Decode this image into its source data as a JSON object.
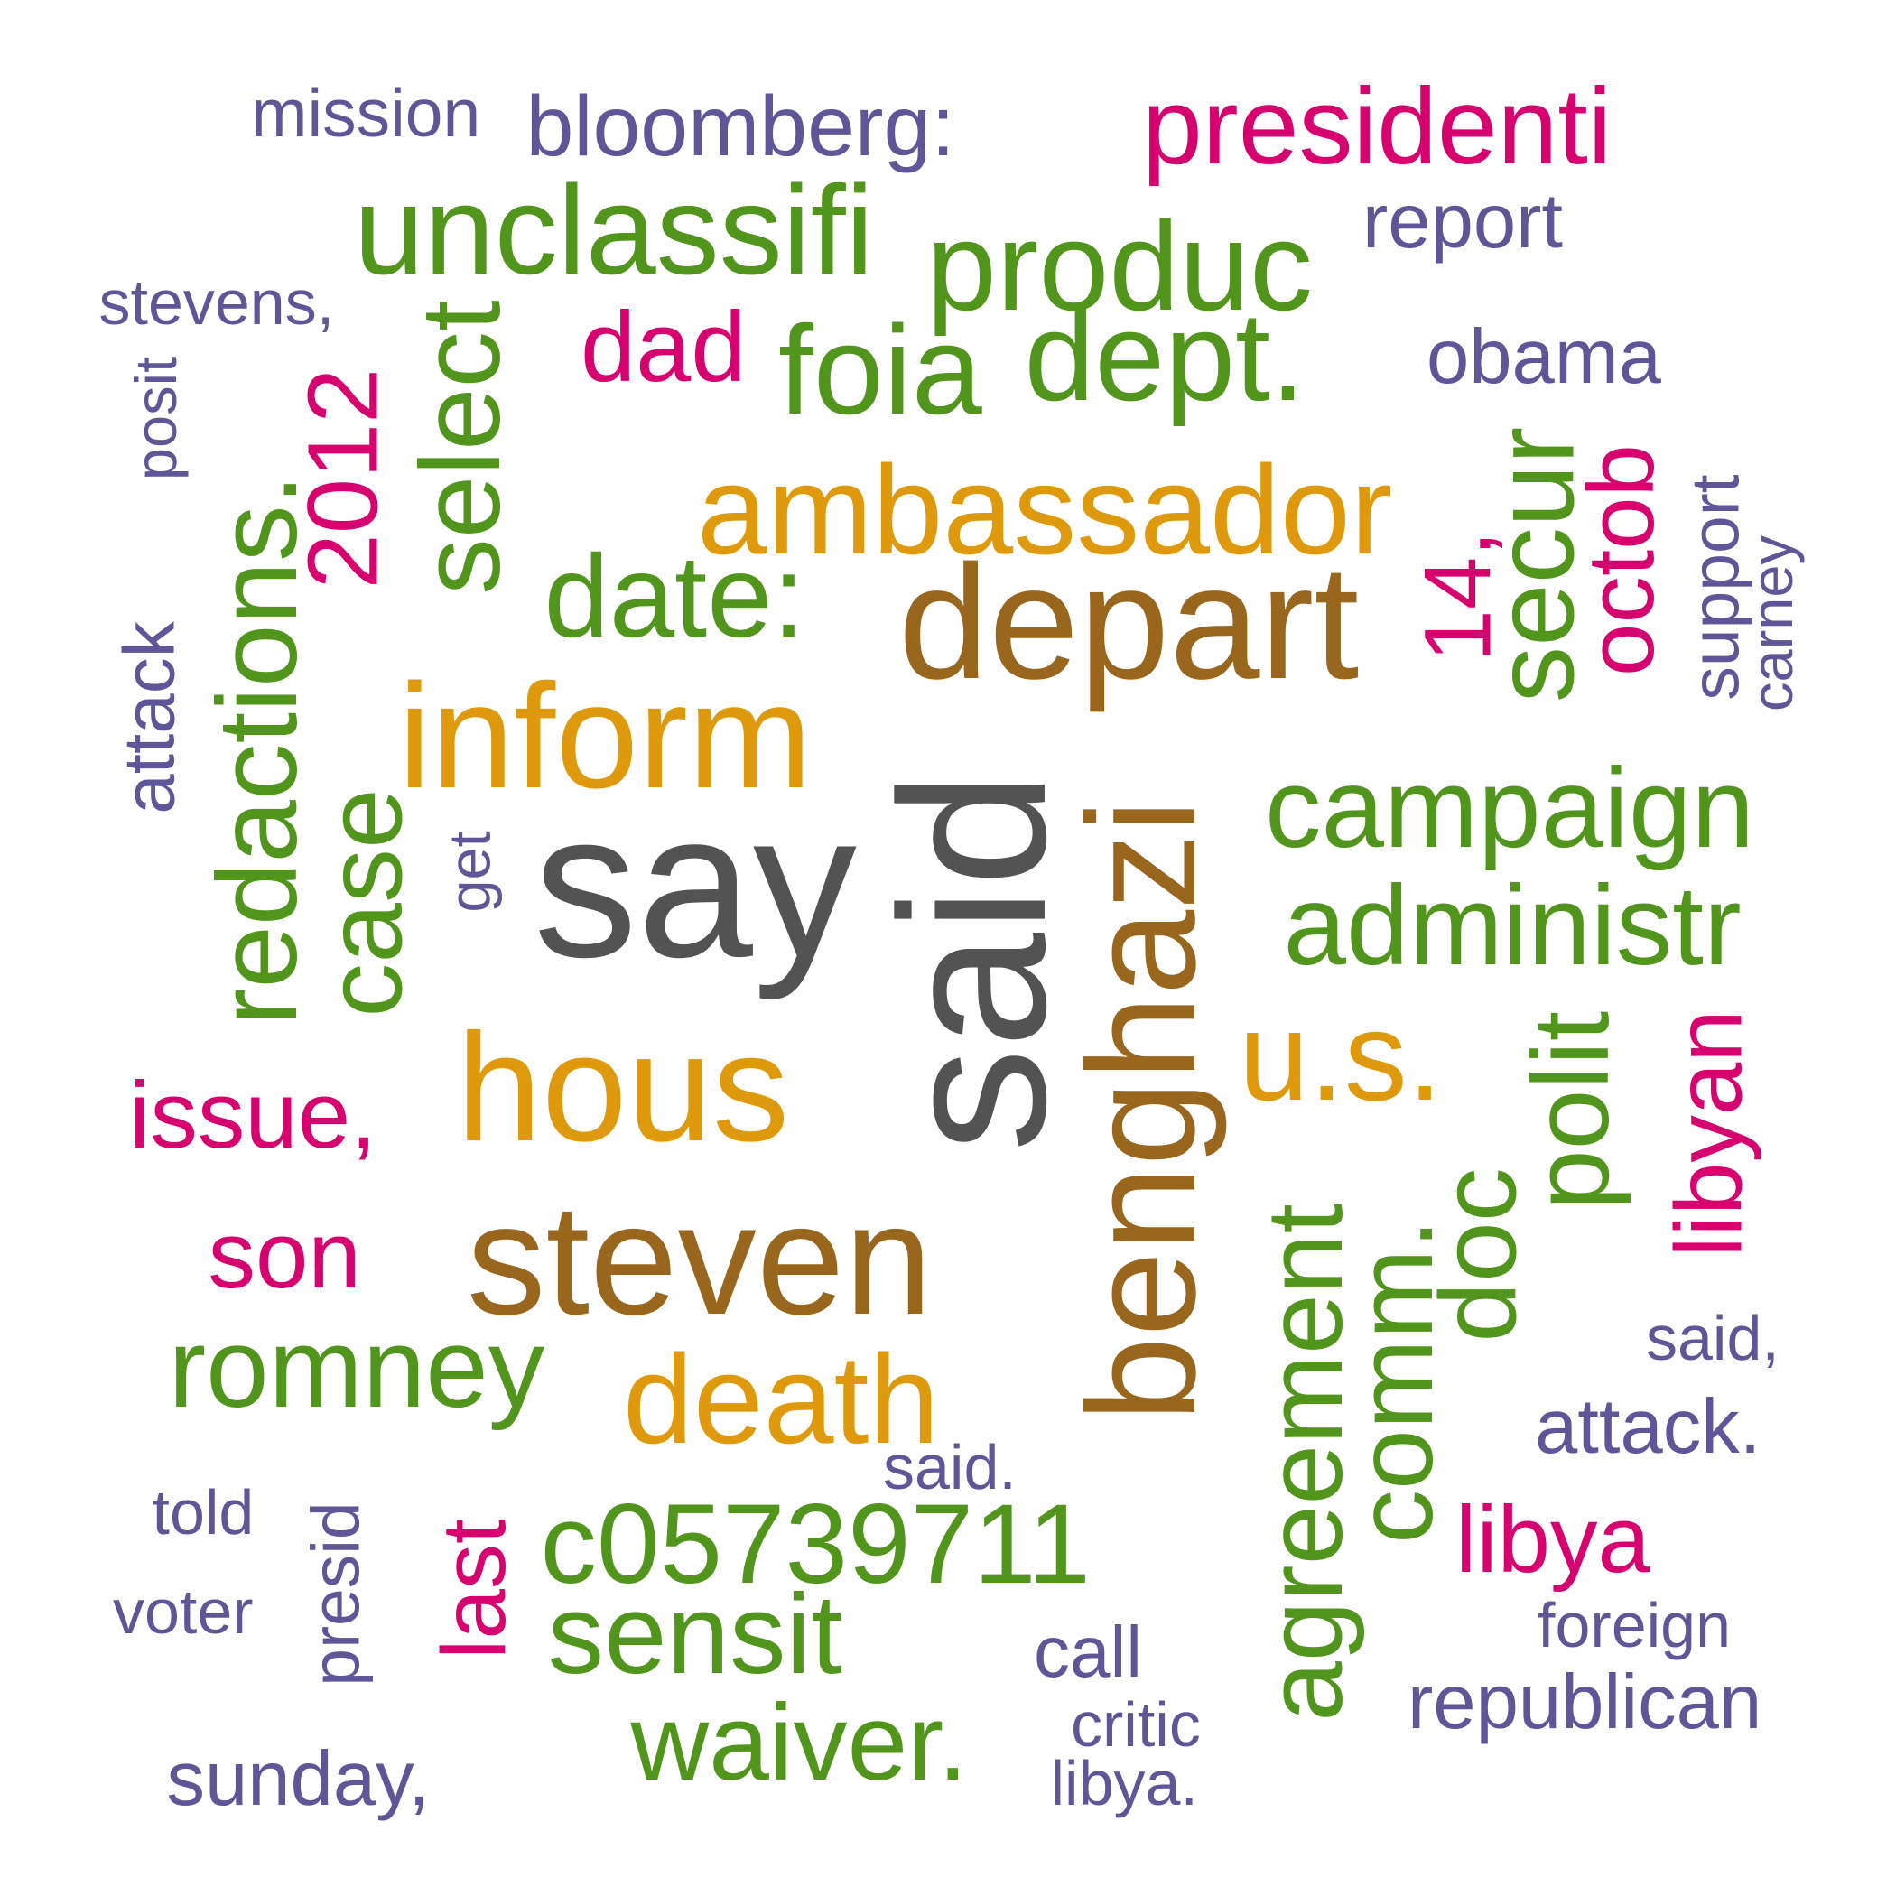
{
  "palette": {
    "gray": "#535353",
    "brown": "#98661d",
    "orange": "#de9a0c",
    "green": "#51951c",
    "magenta": "#d6006f",
    "purple": "#5e5697"
  },
  "words": [
    {
      "text": "say",
      "color": "gray"
    },
    {
      "text": "said",
      "color": "gray"
    },
    {
      "text": "depart",
      "color": "brown"
    },
    {
      "text": "benghazi",
      "color": "brown"
    },
    {
      "text": "steven",
      "color": "brown"
    },
    {
      "text": "inform",
      "color": "orange"
    },
    {
      "text": "hous",
      "color": "orange"
    },
    {
      "text": "ambassador",
      "color": "orange"
    },
    {
      "text": "u.s.",
      "color": "orange"
    },
    {
      "text": "death",
      "color": "orange"
    },
    {
      "text": "unclassifi",
      "color": "green"
    },
    {
      "text": "produc",
      "color": "green"
    },
    {
      "text": "foia",
      "color": "green"
    },
    {
      "text": "dept.",
      "color": "green"
    },
    {
      "text": "date:",
      "color": "green"
    },
    {
      "text": "select",
      "color": "green"
    },
    {
      "text": "redactions.",
      "color": "green"
    },
    {
      "text": "case",
      "color": "green"
    },
    {
      "text": "campaign",
      "color": "green"
    },
    {
      "text": "administr",
      "color": "green"
    },
    {
      "text": "secur",
      "color": "green"
    },
    {
      "text": "polit",
      "color": "green"
    },
    {
      "text": "doc",
      "color": "green"
    },
    {
      "text": "comm.",
      "color": "green"
    },
    {
      "text": "agreement",
      "color": "green"
    },
    {
      "text": "romney",
      "color": "green"
    },
    {
      "text": "c05739711",
      "color": "green"
    },
    {
      "text": "sensit",
      "color": "green"
    },
    {
      "text": "waiver.",
      "color": "green"
    },
    {
      "text": "presidenti",
      "color": "magenta"
    },
    {
      "text": "dad",
      "color": "magenta"
    },
    {
      "text": "2012",
      "color": "magenta"
    },
    {
      "text": "14,",
      "color": "magenta"
    },
    {
      "text": "octob",
      "color": "magenta"
    },
    {
      "text": "issue,",
      "color": "magenta"
    },
    {
      "text": "son",
      "color": "magenta"
    },
    {
      "text": "libyan",
      "color": "magenta"
    },
    {
      "text": "last",
      "color": "magenta"
    },
    {
      "text": "libya",
      "color": "magenta"
    },
    {
      "text": "mission",
      "color": "purple"
    },
    {
      "text": "bloomberg:",
      "color": "purple"
    },
    {
      "text": "report",
      "color": "purple"
    },
    {
      "text": "stevens,",
      "color": "purple"
    },
    {
      "text": "obama",
      "color": "purple"
    },
    {
      "text": "posit",
      "color": "purple"
    },
    {
      "text": "support",
      "color": "purple"
    },
    {
      "text": "carney",
      "color": "purple"
    },
    {
      "text": "attack",
      "color": "purple"
    },
    {
      "text": "get",
      "color": "purple"
    },
    {
      "text": "said,",
      "color": "purple"
    },
    {
      "text": "attack.",
      "color": "purple"
    },
    {
      "text": "said.",
      "color": "purple"
    },
    {
      "text": "told",
      "color": "purple"
    },
    {
      "text": "presid",
      "color": "purple"
    },
    {
      "text": "voter",
      "color": "purple"
    },
    {
      "text": "call",
      "color": "purple"
    },
    {
      "text": "foreign",
      "color": "purple"
    },
    {
      "text": "critic",
      "color": "purple"
    },
    {
      "text": "republican",
      "color": "purple"
    },
    {
      "text": "sunday,",
      "color": "purple"
    },
    {
      "text": "libya.",
      "color": "purple"
    }
  ]
}
